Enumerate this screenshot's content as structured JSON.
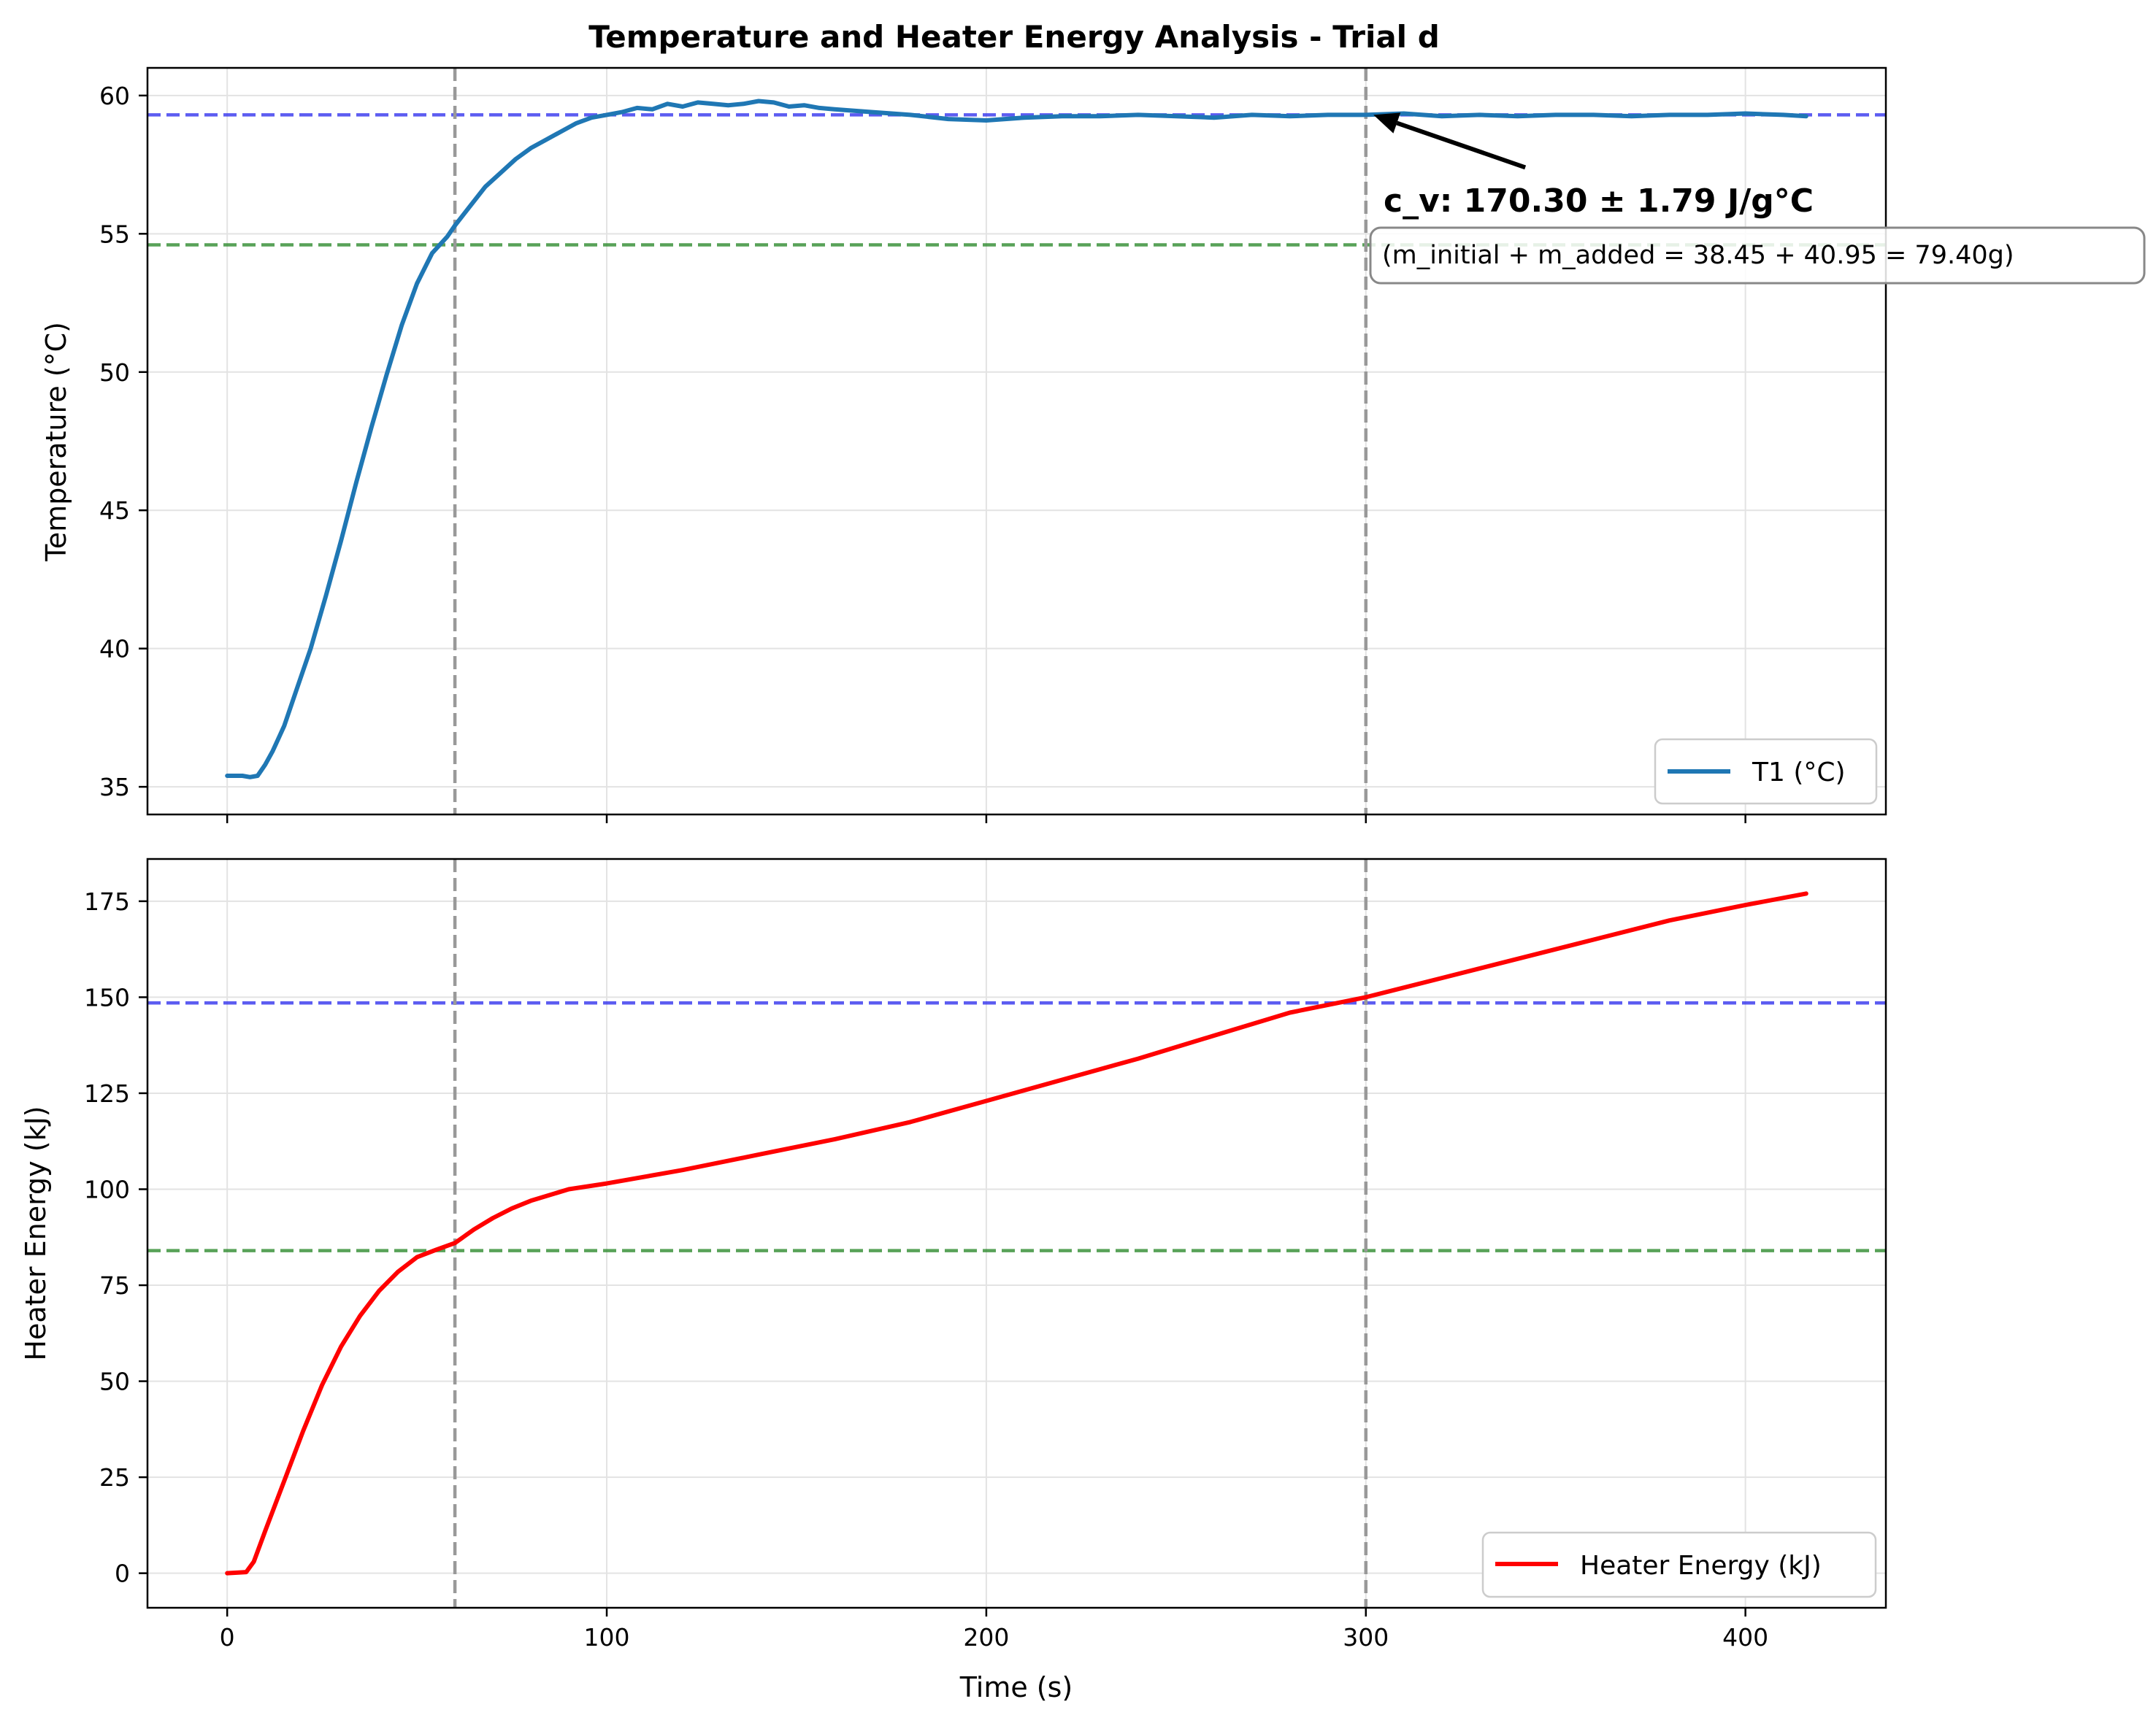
{
  "chart_data": [
    {
      "type": "line",
      "title": "Temperature and Heater Energy Analysis - Trial d",
      "xlabel": "",
      "ylabel": "Temperature (°C)",
      "xlim": [
        -21,
        437
      ],
      "ylim": [
        34,
        61
      ],
      "xticks": [
        0,
        100,
        200,
        300,
        400
      ],
      "xtick_labels": [
        "",
        "",
        "",
        "",
        ""
      ],
      "yticks": [
        35,
        40,
        45,
        50,
        55,
        60
      ],
      "ytick_labels": [
        "35",
        "40",
        "45",
        "50",
        "55",
        "60"
      ],
      "grid": true,
      "legend_position": "lower-right",
      "series": [
        {
          "name": "T1 (°C)",
          "color": "#1f77b4",
          "x": [
            0,
            4,
            6,
            8,
            10,
            12,
            15,
            18,
            22,
            26,
            30,
            34,
            38,
            42,
            46,
            50,
            54,
            58,
            60,
            64,
            68,
            72,
            76,
            80,
            84,
            88,
            92,
            96,
            100,
            104,
            108,
            112,
            116,
            120,
            124,
            128,
            132,
            136,
            140,
            144,
            148,
            152,
            156,
            160,
            170,
            180,
            190,
            200,
            210,
            220,
            230,
            240,
            250,
            260,
            270,
            280,
            290,
            300,
            310,
            320,
            330,
            340,
            350,
            360,
            370,
            380,
            390,
            400,
            410,
            416
          ],
          "y": [
            35.4,
            35.4,
            35.35,
            35.4,
            35.8,
            36.3,
            37.2,
            38.4,
            40.0,
            41.9,
            43.9,
            46.0,
            48.0,
            49.9,
            51.7,
            53.2,
            54.3,
            54.9,
            55.3,
            56.0,
            56.7,
            57.2,
            57.7,
            58.1,
            58.4,
            58.7,
            59.0,
            59.2,
            59.3,
            59.4,
            59.55,
            59.5,
            59.7,
            59.6,
            59.75,
            59.7,
            59.65,
            59.7,
            59.8,
            59.75,
            59.6,
            59.65,
            59.55,
            59.5,
            59.4,
            59.3,
            59.15,
            59.1,
            59.2,
            59.25,
            59.25,
            59.3,
            59.25,
            59.2,
            59.3,
            59.25,
            59.3,
            59.3,
            59.35,
            59.25,
            59.3,
            59.25,
            59.3,
            59.3,
            59.25,
            59.3,
            59.3,
            59.35,
            59.3,
            59.25
          ]
        }
      ],
      "hlines": [
        {
          "y": 59.3,
          "color": "#3333ee"
        },
        {
          "y": 54.6,
          "color": "#2e8b2e"
        }
      ],
      "vlines": [
        {
          "x": 60,
          "color": "#999999"
        },
        {
          "x": 300,
          "color": "#999999"
        }
      ],
      "annotation": {
        "text": "c_v: 170.30 ± 1.79 J/g°C",
        "subtext": "(m_initial + m_added = 38.45 + 40.95 = 79.40g)",
        "arrow_target": [
          302,
          59.3
        ],
        "arrow_tail": [
          342,
          57.4
        ]
      }
    },
    {
      "type": "line",
      "title": "",
      "xlabel": "Time (s)",
      "ylabel": "Heater Energy (kJ)",
      "xlim": [
        -21,
        437
      ],
      "ylim": [
        -9,
        186
      ],
      "xticks": [
        0,
        100,
        200,
        300,
        400
      ],
      "xtick_labels": [
        "0",
        "100",
        "200",
        "300",
        "400"
      ],
      "yticks": [
        0,
        25,
        50,
        75,
        100,
        125,
        150,
        175
      ],
      "ytick_labels": [
        "0",
        "25",
        "50",
        "75",
        "100",
        "125",
        "150",
        "175"
      ],
      "grid": true,
      "legend_position": "lower-right",
      "series": [
        {
          "name": "Heater Energy (kJ)",
          "color": "#ff0000",
          "x": [
            0,
            5,
            7,
            10,
            15,
            20,
            25,
            30,
            35,
            40,
            45,
            50,
            55,
            60,
            65,
            70,
            75,
            80,
            90,
            100,
            120,
            140,
            160,
            180,
            200,
            220,
            240,
            260,
            280,
            300,
            320,
            340,
            360,
            380,
            400,
            416
          ],
          "y": [
            0,
            0.3,
            3,
            11,
            24,
            37,
            49,
            59,
            67,
            73.5,
            78.5,
            82.3,
            84.2,
            86,
            89.5,
            92.5,
            95,
            97,
            100,
            101.5,
            105,
            109,
            113,
            117.5,
            123,
            128.5,
            134,
            140,
            146,
            150,
            155,
            160,
            165,
            170,
            174,
            177
          ]
        }
      ],
      "hlines": [
        {
          "y": 148.5,
          "color": "#3333ee"
        },
        {
          "y": 84,
          "color": "#2e8b2e"
        }
      ],
      "vlines": [
        {
          "x": 60,
          "color": "#999999"
        },
        {
          "x": 300,
          "color": "#999999"
        }
      ]
    }
  ]
}
